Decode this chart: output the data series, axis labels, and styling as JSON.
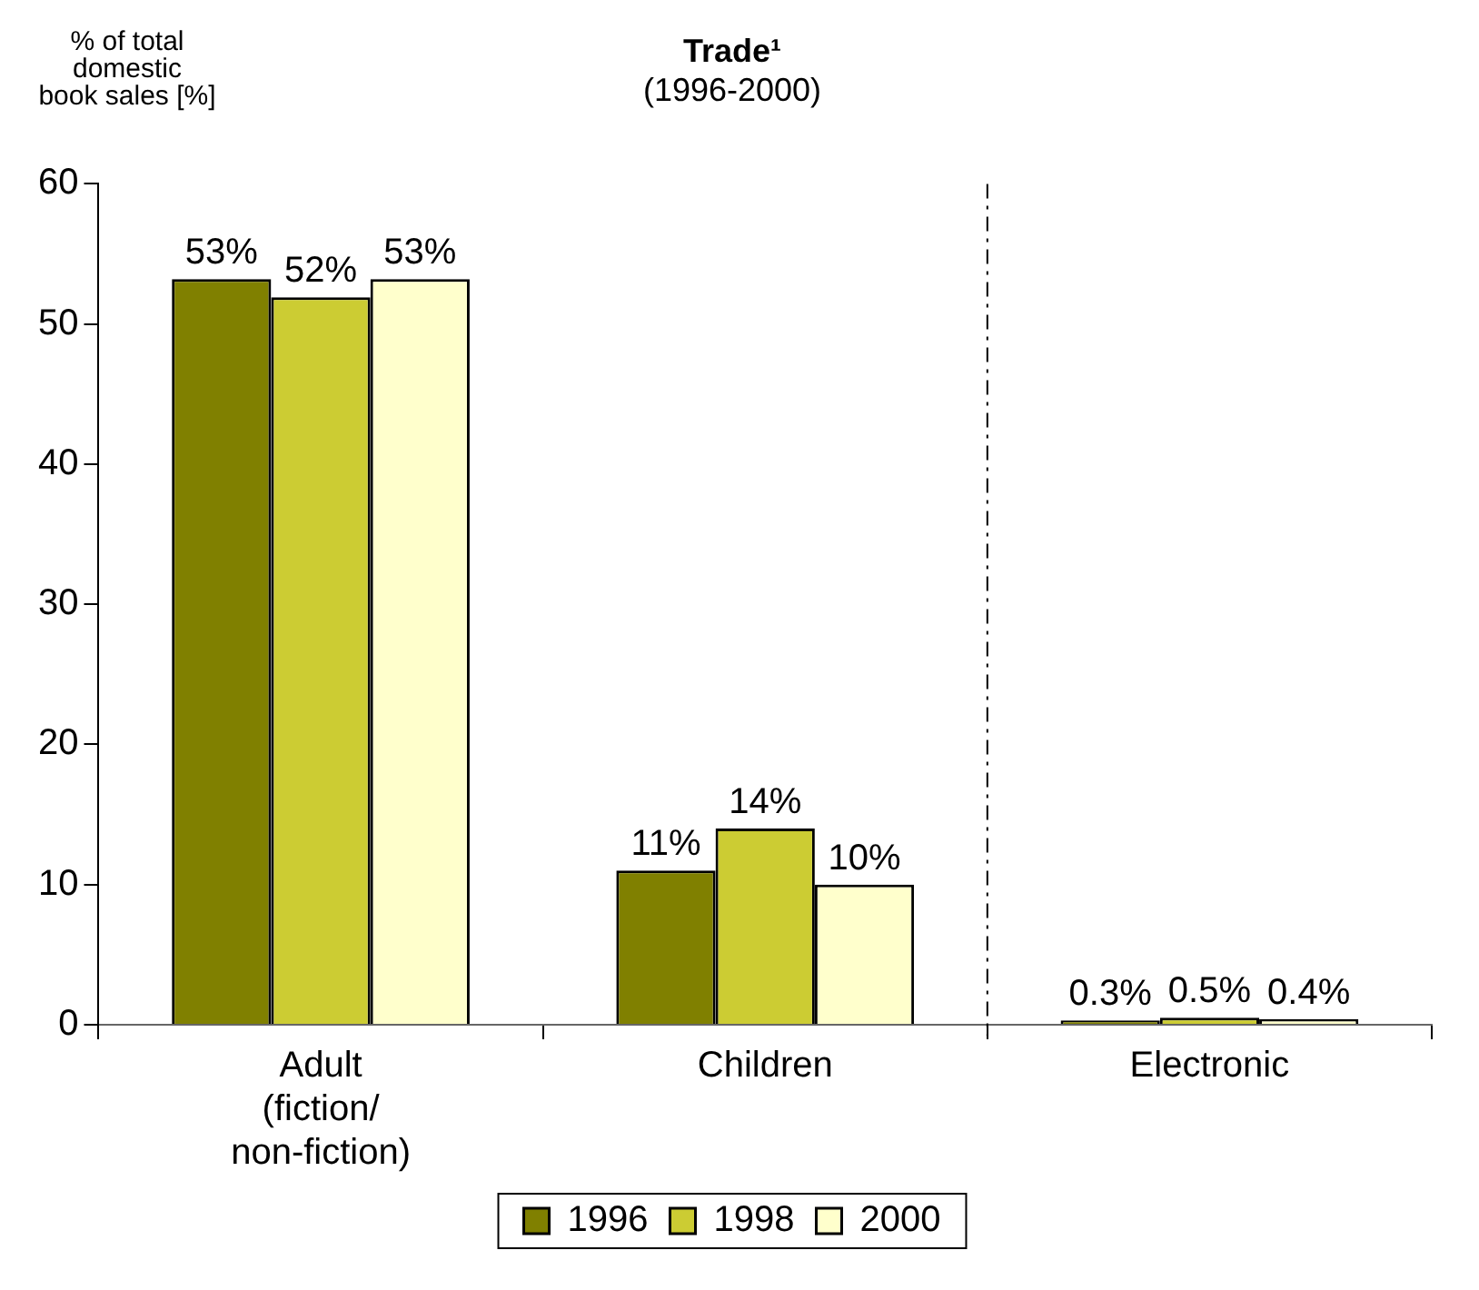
{
  "chart_data": {
    "type": "bar",
    "title": "Trade¹",
    "subtitle": "(1996-2000)",
    "ylabel": "% of total\ndomestic\nbook sales [%]",
    "categories": [
      "Adult\n(fiction/\nnon-fiction)",
      "Children",
      "Electronic"
    ],
    "series": [
      {
        "name": "1996",
        "color": "#808000",
        "values": [
          53.2,
          11,
          0.3
        ],
        "value_labels": [
          "53%",
          "11%",
          "0.3%"
        ]
      },
      {
        "name": "1998",
        "color": "#cccc33",
        "values": [
          51.9,
          14,
          0.5
        ],
        "value_labels": [
          "52%",
          "14%",
          "0.5%"
        ]
      },
      {
        "name": "2000",
        "color": "#ffffcc",
        "values": [
          53.2,
          10,
          0.4
        ],
        "value_labels": [
          "53%",
          "10%",
          "0.4%"
        ]
      }
    ],
    "ylim": [
      0,
      60
    ],
    "yticks": [
      0,
      10,
      20,
      30,
      40,
      50,
      60
    ],
    "grid": false,
    "legend": "bottom"
  }
}
